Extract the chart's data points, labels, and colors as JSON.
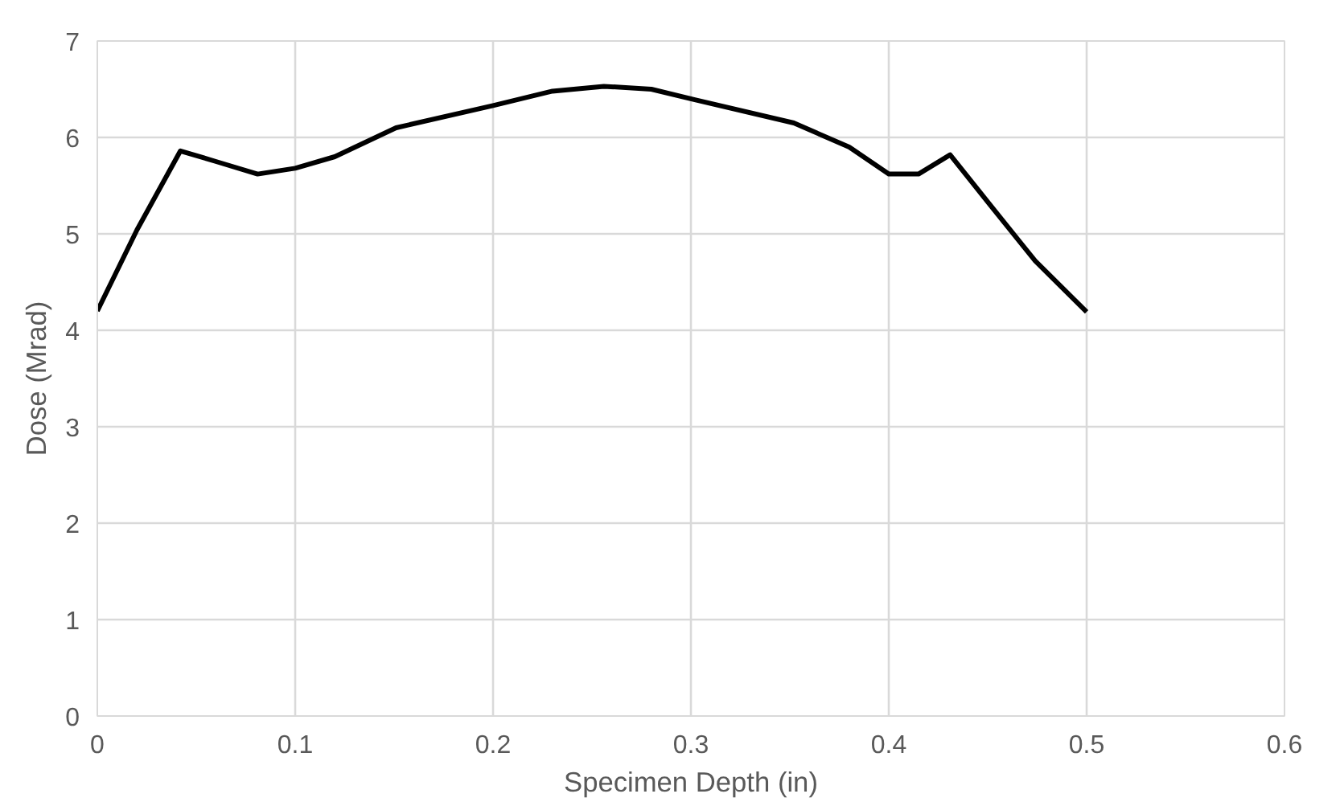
{
  "chart_data": {
    "type": "line",
    "xlabel": "Specimen Depth (in)",
    "ylabel": "Dose (Mrad)",
    "x": [
      0,
      0.02,
      0.042,
      0.06,
      0.081,
      0.1,
      0.12,
      0.151,
      0.2,
      0.23,
      0.256,
      0.28,
      0.302,
      0.352,
      0.38,
      0.4,
      0.415,
      0.431,
      0.452,
      0.474,
      0.5
    ],
    "series": [
      {
        "color": "#000000",
        "values": [
          4.2,
          5.04,
          5.86,
          5.75,
          5.62,
          5.68,
          5.8,
          6.1,
          6.33,
          6.48,
          6.53,
          6.5,
          6.39,
          6.15,
          5.9,
          5.62,
          5.62,
          5.82,
          5.28,
          4.72,
          4.19
        ]
      }
    ],
    "xlim": [
      0,
      0.6
    ],
    "ylim": [
      0,
      7
    ],
    "xticks": [
      0,
      0.1,
      0.2,
      0.3,
      0.4,
      0.5,
      0.6
    ],
    "yticks": [
      0,
      1,
      2,
      3,
      4,
      5,
      6,
      7
    ],
    "grid": true,
    "marker": "none",
    "line_style": "solid"
  }
}
